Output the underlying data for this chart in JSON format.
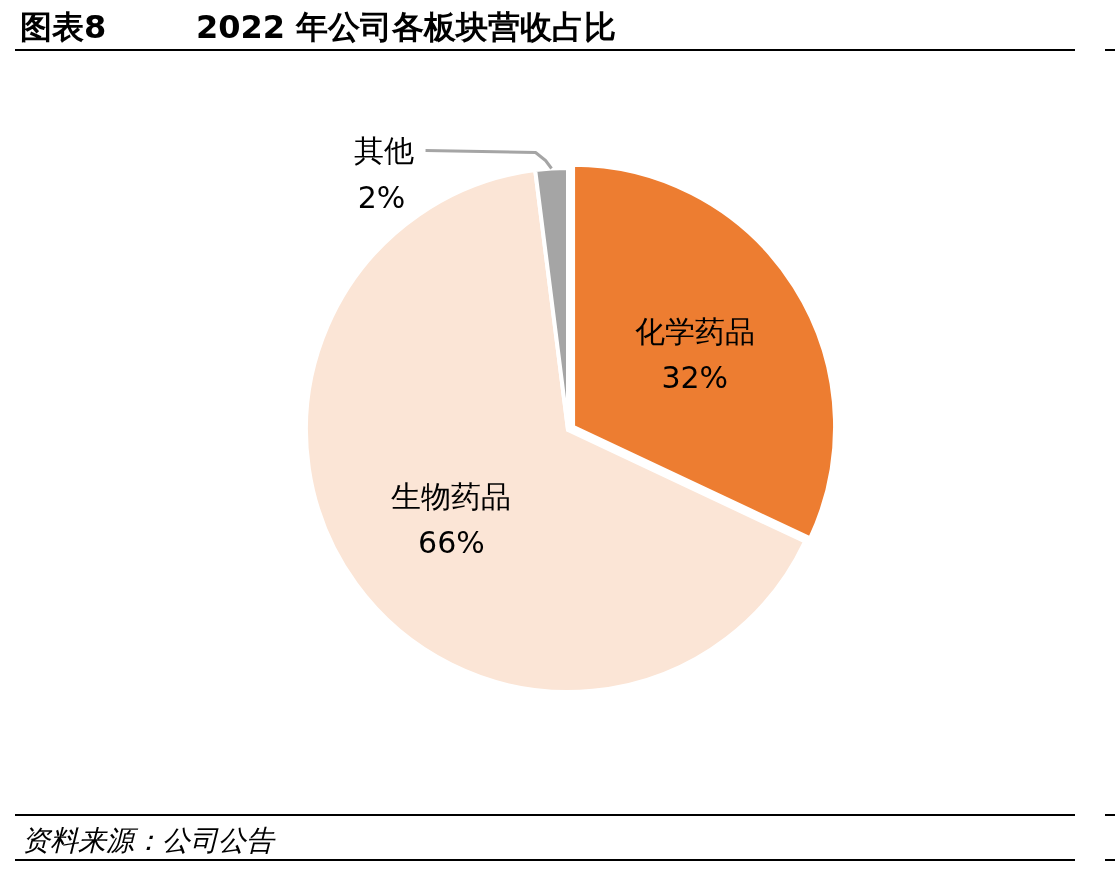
{
  "chart_data": {
    "type": "pie",
    "title": "图表8",
    "subtitle": "2022 年公司各板块营收占比",
    "categories": [
      "化学药品",
      "生物药品",
      "其他"
    ],
    "values": [
      32,
      66,
      2
    ],
    "colors": [
      "#ed7d31",
      "#fbe5d6",
      "#a5a5a5"
    ],
    "value_labels": [
      "32%",
      "66%",
      "2%"
    ],
    "annotations": [
      "资料来源：公司公告"
    ]
  }
}
